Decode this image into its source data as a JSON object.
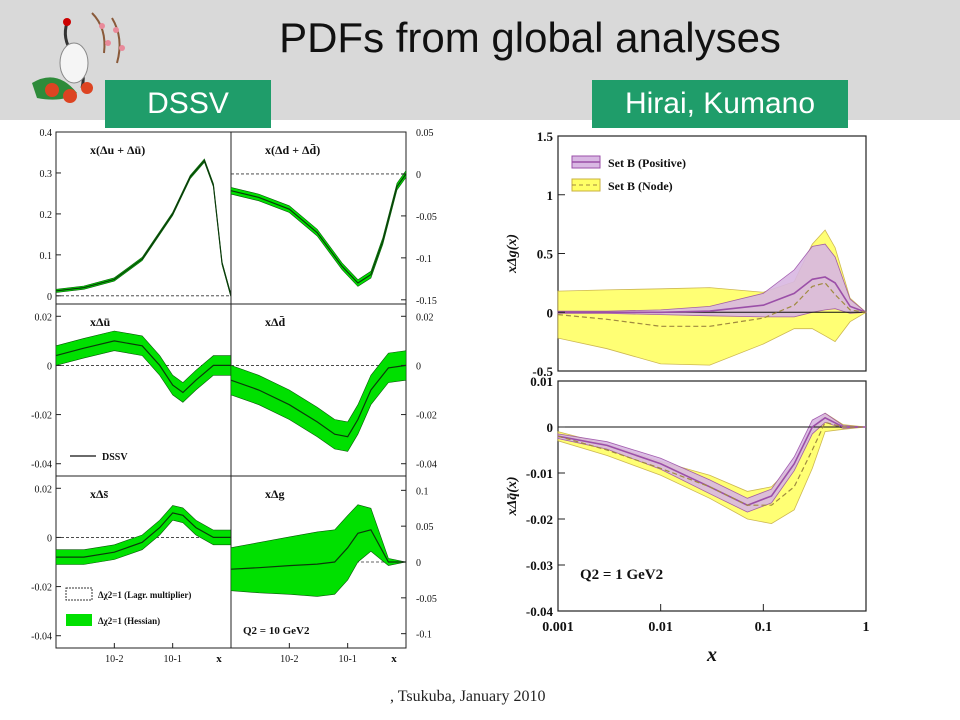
{
  "slide": {
    "title": "PDFs from global analyses",
    "tag_left": "DSSV",
    "tag_right": "Hirai, Kumano",
    "footer": ", Tsukuba, January 2010"
  },
  "colors": {
    "header_bg": "#d9d9d9",
    "tag_bg": "#1f9d6a",
    "dssv_band": "#00e000",
    "hk_positive": "#9b4fa8",
    "hk_positive_band": "#d9b8e3",
    "hk_node_band": "#ffff66"
  },
  "chart_data": [
    {
      "id": "dssv",
      "type": "line",
      "xlabel": "x",
      "x_ticks": [
        "10-2",
        "10-1"
      ],
      "panels": [
        {
          "label": "x(Δu + Δū)",
          "side": "left",
          "ylim": [
            -0.02,
            0.4
          ],
          "yticks": [
            "0",
            "0.1",
            "0.2",
            "0.3",
            "0.4"
          ],
          "x": [
            0.001,
            0.003,
            0.01,
            0.03,
            0.1,
            0.2,
            0.35,
            0.5,
            0.7,
            1.0
          ],
          "central": [
            0.012,
            0.02,
            0.04,
            0.09,
            0.2,
            0.29,
            0.33,
            0.27,
            0.08,
            0.0
          ],
          "band": 0.004
        },
        {
          "label": "x(Δd + Δd̄)",
          "side": "right",
          "ylim": [
            -0.155,
            0.05
          ],
          "yticks": [
            "0.05",
            "0",
            "-0.05",
            "-0.1",
            "-0.15"
          ],
          "x": [
            0.001,
            0.003,
            0.01,
            0.03,
            0.08,
            0.15,
            0.25,
            0.4,
            0.7,
            1.0
          ],
          "central": [
            -0.02,
            -0.028,
            -0.042,
            -0.07,
            -0.11,
            -0.13,
            -0.12,
            -0.08,
            -0.015,
            0.0
          ],
          "band": 0.004
        },
        {
          "label": "xΔū",
          "side": "left",
          "ylim": [
            -0.045,
            0.025
          ],
          "yticks": [
            "0.02",
            "0",
            "-0.02",
            "-0.04"
          ],
          "x": [
            0.001,
            0.003,
            0.01,
            0.03,
            0.06,
            0.1,
            0.15,
            0.25,
            0.5,
            1.0
          ],
          "central": [
            0.004,
            0.007,
            0.01,
            0.008,
            0.0,
            -0.008,
            -0.011,
            -0.006,
            0.0,
            0.0
          ],
          "band": 0.004,
          "legend": "DSSV"
        },
        {
          "label": "xΔd̄",
          "side": "right",
          "ylim": [
            -0.045,
            0.025
          ],
          "yticks": [
            "0.02",
            "0",
            "-0.02",
            "-0.04"
          ],
          "x": [
            0.001,
            0.003,
            0.01,
            0.03,
            0.06,
            0.1,
            0.15,
            0.25,
            0.5,
            1.0
          ],
          "central": [
            -0.006,
            -0.01,
            -0.016,
            -0.023,
            -0.028,
            -0.029,
            -0.022,
            -0.01,
            -0.001,
            0.0
          ],
          "band": 0.006
        },
        {
          "label": "xΔs̄",
          "side": "left",
          "ylim": [
            -0.045,
            0.025
          ],
          "yticks": [
            "0.02",
            "0",
            "-0.02",
            "-0.04"
          ],
          "x": [
            0.001,
            0.003,
            0.01,
            0.03,
            0.06,
            0.1,
            0.15,
            0.25,
            0.5,
            1.0
          ],
          "central": [
            -0.008,
            -0.008,
            -0.006,
            -0.002,
            0.004,
            0.01,
            0.009,
            0.004,
            0.0,
            0.0
          ],
          "band": 0.003,
          "legend_items": [
            "Δχ2=1 (Lagr. multiplier)",
            "Δχ2=1 (Hessian)"
          ]
        },
        {
          "label": "xΔg",
          "side": "right",
          "ylim": [
            -0.12,
            0.12
          ],
          "yticks": [
            "0.1",
            "0.05",
            "0",
            "-0.05",
            "-0.1"
          ],
          "x": [
            0.001,
            0.003,
            0.01,
            0.03,
            0.06,
            0.1,
            0.15,
            0.25,
            0.5,
            1.0
          ],
          "central": [
            -0.01,
            -0.008,
            -0.005,
            -0.003,
            0.0,
            0.02,
            0.04,
            0.045,
            0.0,
            0.0
          ],
          "band": [
            0.03,
            0.035,
            0.04,
            0.045,
            0.045,
            0.045,
            0.04,
            0.03,
            0.005,
            0.0
          ],
          "annotation": "Q2 = 10 GeV2"
        }
      ]
    },
    {
      "id": "hirai-kumano",
      "type": "line",
      "xlabel": "x",
      "xlim": [
        0.001,
        1
      ],
      "x_ticks": [
        "0.001",
        "0.01",
        "0.1",
        "1"
      ],
      "panels": [
        {
          "ylabel": "xΔg(x)",
          "ylim": [
            -0.5,
            1.5
          ],
          "yticks": [
            "1.5",
            "1",
            "0.5",
            "0",
            "-0.5"
          ],
          "legend_items": [
            "Set B (Positive)",
            "Set B (Node)"
          ],
          "series": [
            {
              "name": "Set B (Positive)",
              "x": [
                0.001,
                0.003,
                0.01,
                0.03,
                0.1,
                0.2,
                0.3,
                0.4,
                0.5,
                0.7,
                1.0
              ],
              "y": [
                0.0,
                0.0,
                0.0,
                0.01,
                0.06,
                0.16,
                0.28,
                0.3,
                0.25,
                0.05,
                0.0
              ],
              "band": [
                0.01,
                0.01,
                0.02,
                0.04,
                0.1,
                0.2,
                0.28,
                0.28,
                0.22,
                0.06,
                0.0
              ]
            },
            {
              "name": "Set B (Node)",
              "x": [
                0.001,
                0.003,
                0.01,
                0.03,
                0.1,
                0.2,
                0.3,
                0.4,
                0.5,
                0.7,
                1.0
              ],
              "y": [
                -0.02,
                -0.06,
                -0.12,
                -0.12,
                -0.05,
                0.06,
                0.22,
                0.25,
                0.15,
                0.02,
                0.0
              ],
              "band": [
                0.2,
                0.25,
                0.32,
                0.33,
                0.22,
                0.2,
                0.36,
                0.45,
                0.4,
                0.1,
                0.0
              ]
            }
          ]
        },
        {
          "ylabel": "xΔq̄(x)",
          "ylim": [
            -0.04,
            0.01
          ],
          "yticks": [
            "0.01",
            "0",
            "-0.01",
            "-0.02",
            "-0.03",
            "-0.04"
          ],
          "annotation": "Q2 = 1 GeV2",
          "series": [
            {
              "name": "Set B (Positive)",
              "x": [
                0.001,
                0.003,
                0.01,
                0.03,
                0.07,
                0.12,
                0.2,
                0.3,
                0.4,
                0.6,
                1.0
              ],
              "y": [
                -0.002,
                -0.004,
                -0.008,
                -0.013,
                -0.017,
                -0.015,
                -0.008,
                0.0,
                0.002,
                0.0,
                0.0
              ],
              "band": [
                0.0005,
                0.0008,
                0.0012,
                0.0015,
                0.0015,
                0.0015,
                0.0015,
                0.0015,
                0.001,
                0.0003,
                0.0
              ]
            },
            {
              "name": "Set B (Node)",
              "x": [
                0.001,
                0.003,
                0.01,
                0.03,
                0.07,
                0.12,
                0.2,
                0.3,
                0.4,
                0.6,
                1.0
              ],
              "y": [
                -0.002,
                -0.005,
                -0.009,
                -0.013,
                -0.017,
                -0.017,
                -0.013,
                -0.005,
                0.001,
                0.0,
                0.0
              ],
              "band": [
                0.001,
                0.0012,
                0.0015,
                0.0025,
                0.003,
                0.004,
                0.005,
                0.004,
                0.002,
                0.0005,
                0.0
              ]
            }
          ]
        }
      ]
    }
  ]
}
